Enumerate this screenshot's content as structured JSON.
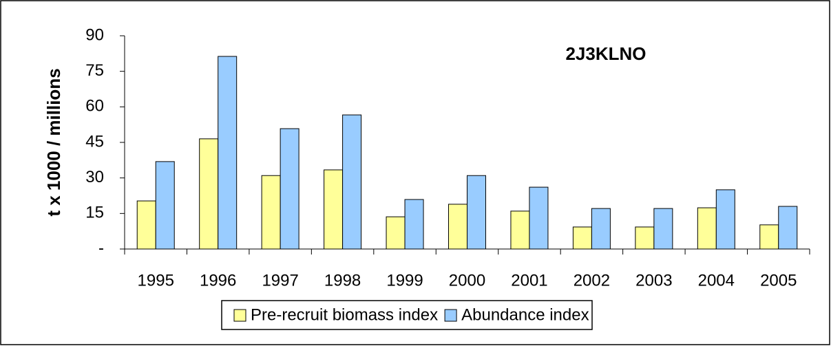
{
  "chart_data": {
    "type": "bar",
    "title": "2J3KLNO",
    "y_label": "t x 1000 / millions",
    "categories": [
      "1995",
      "1996",
      "1997",
      "1998",
      "1999",
      "2000",
      "2001",
      "2002",
      "2003",
      "2004",
      "2005"
    ],
    "series": [
      {
        "name": "Pre-recruit biomass index",
        "color": "#ffff99",
        "values": [
          20.3,
          46.5,
          31,
          33.4,
          13.6,
          18.9,
          16,
          9.3,
          9.3,
          17.4,
          10.2
        ]
      },
      {
        "name": "Abundance index",
        "color": "#99ccff",
        "values": [
          36.9,
          81.3,
          50.8,
          56.6,
          20.9,
          31,
          26.1,
          17.1,
          17.1,
          25,
          18
        ]
      }
    ],
    "ylim": [
      0,
      90
    ],
    "yticks": [
      {
        "value": 0,
        "label": "-"
      },
      15,
      30,
      45,
      60,
      75,
      90
    ],
    "grid": false,
    "legend": "bottom"
  }
}
